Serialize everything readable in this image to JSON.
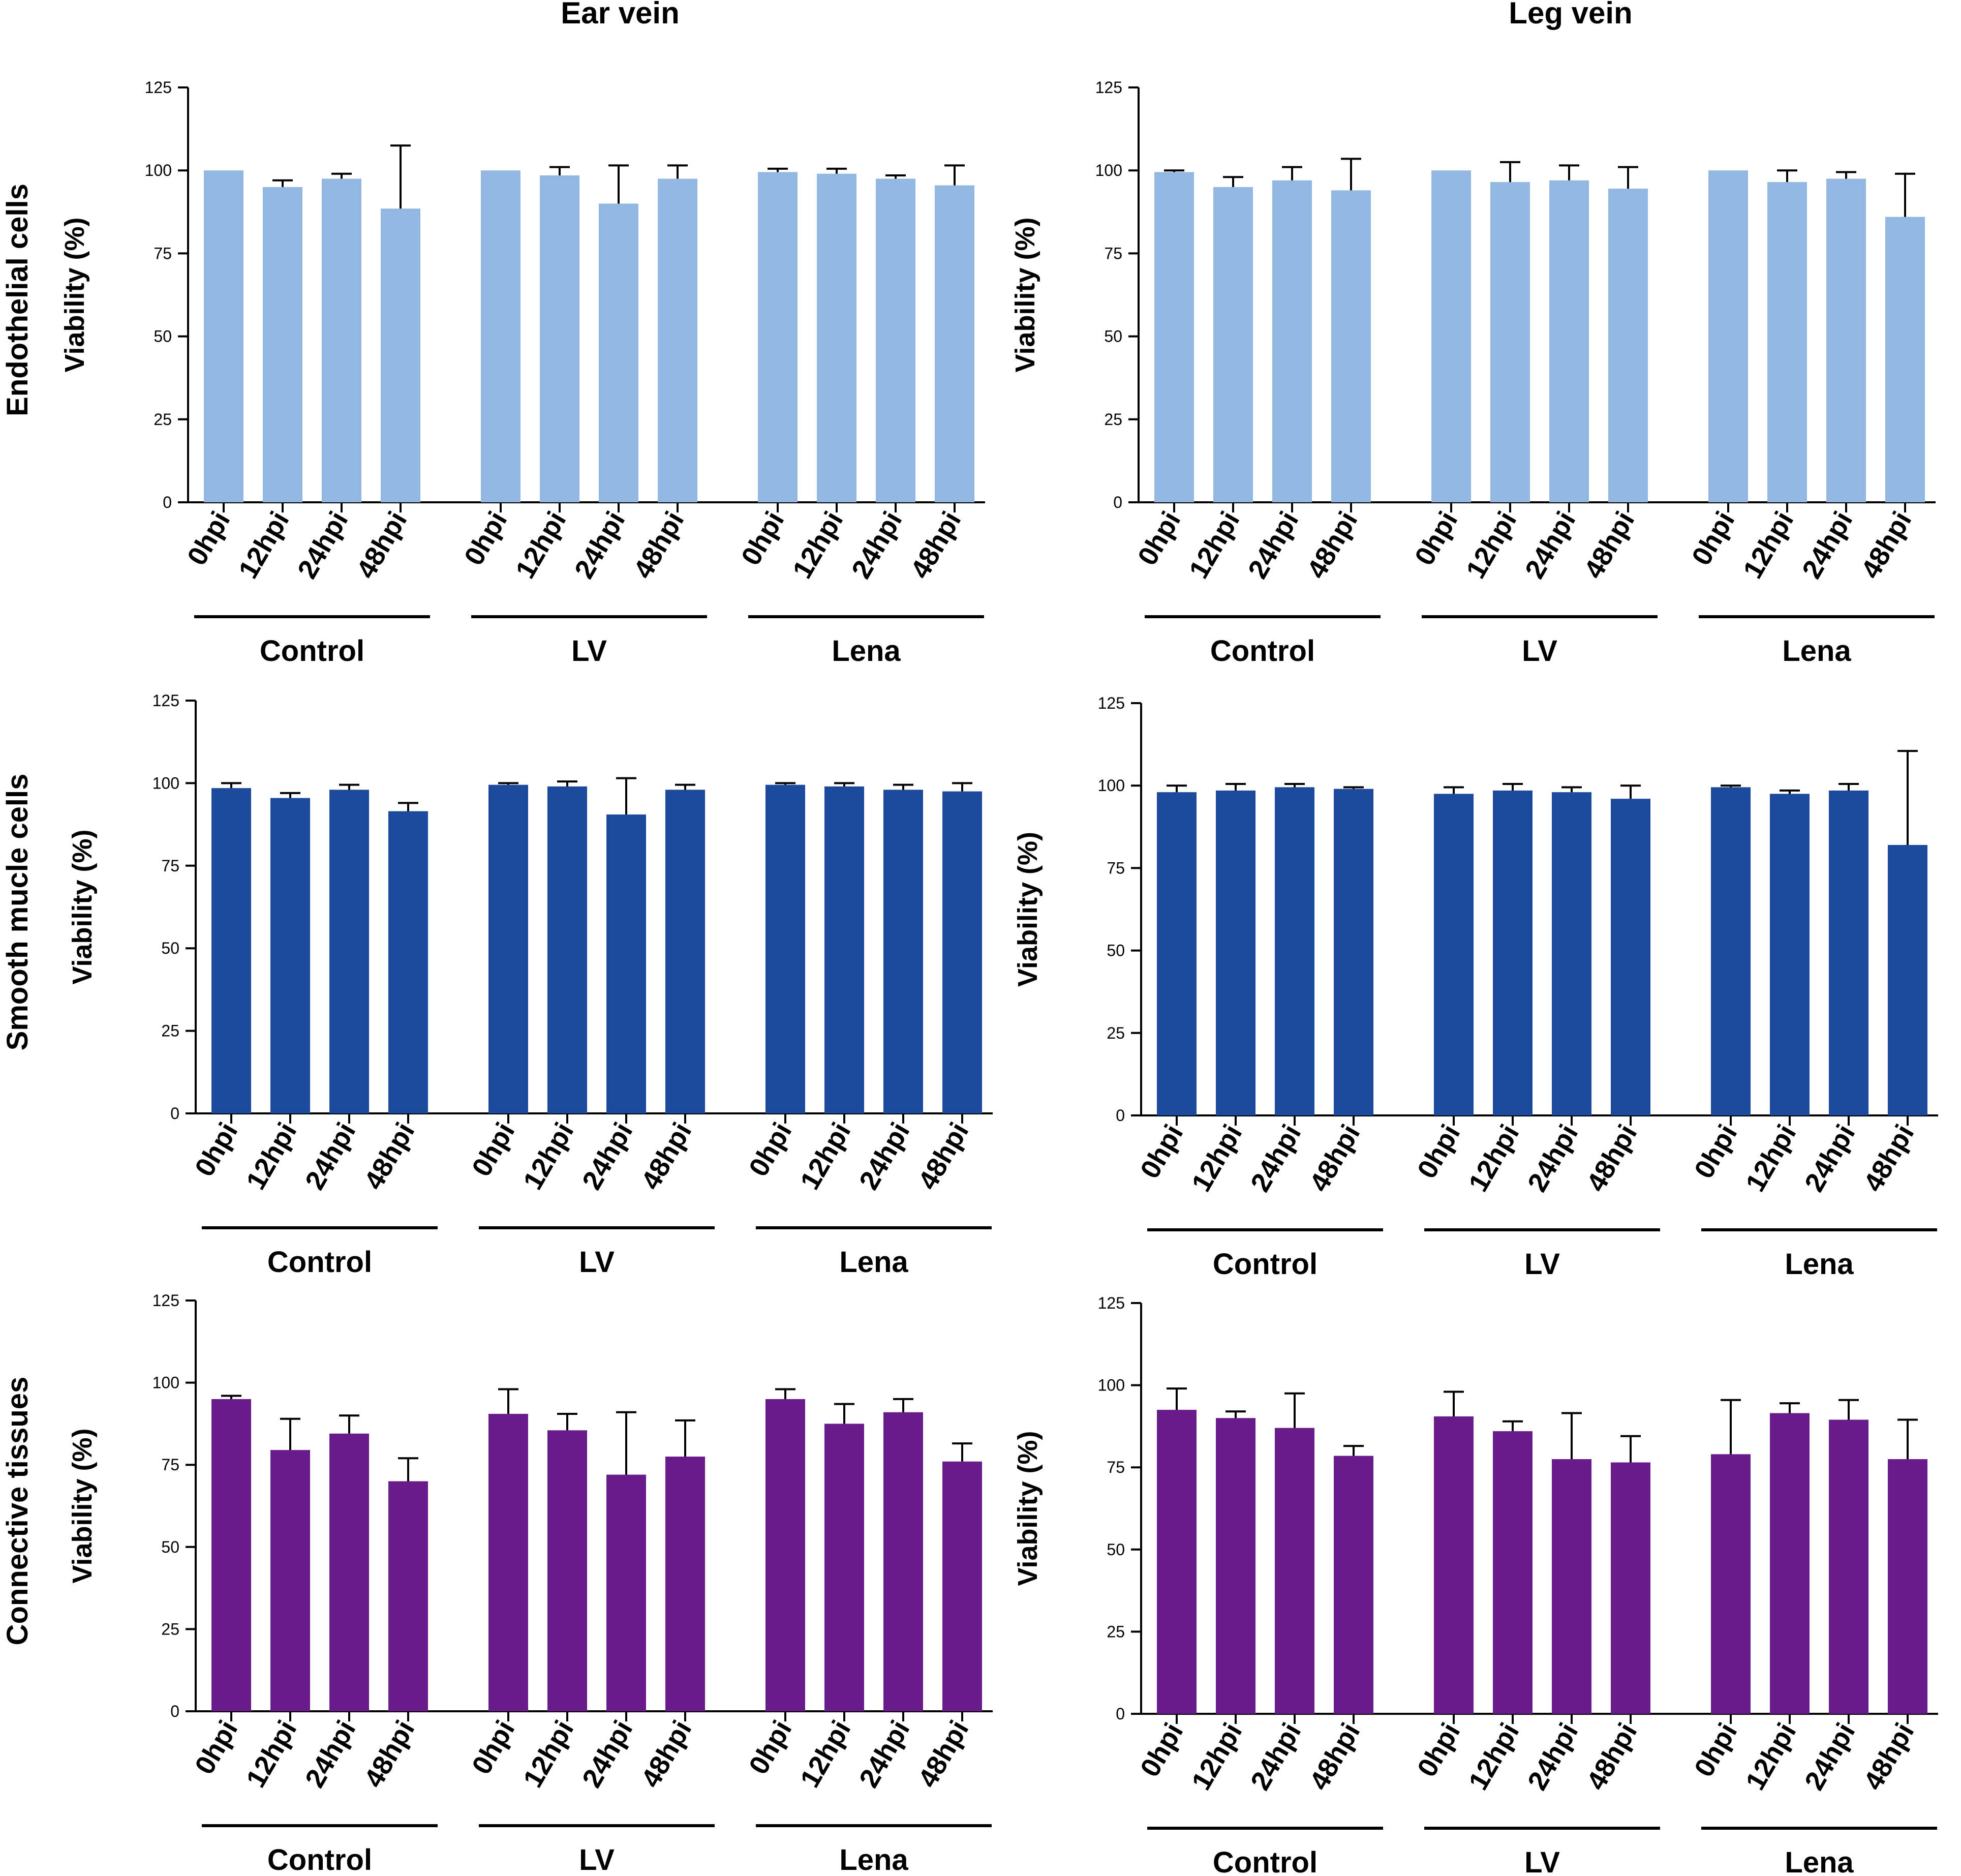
{
  "chart_data": [
    {
      "type": "bar",
      "column_title": "Ear vein",
      "row_title": "Endothelial cells",
      "color": "#92B7E0",
      "ylabel": "Viability (%)",
      "ylim": [
        0,
        125
      ],
      "yticks": [
        "0",
        "25",
        "50",
        "75",
        "100",
        "125"
      ],
      "categories": [
        "0hpi",
        "12hpi",
        "24hpi",
        "48hpi"
      ],
      "groups": [
        {
          "name": "Control",
          "values": [
            100,
            95,
            97.5,
            88.5
          ],
          "errors": [
            0,
            2,
            1.5,
            19
          ]
        },
        {
          "name": "LV",
          "values": [
            100,
            98.5,
            90,
            97.5
          ],
          "errors": [
            0,
            2.5,
            11.5,
            4
          ]
        },
        {
          "name": "Lena",
          "values": [
            99.5,
            99,
            97.5,
            95.5
          ],
          "errors": [
            1,
            1.5,
            1,
            6
          ]
        }
      ]
    },
    {
      "type": "bar",
      "column_title": "Leg vein",
      "row_title": "",
      "color": "#92B7E0",
      "ylabel": "Viability (%)",
      "ylim": [
        0,
        125
      ],
      "yticks": [
        "0",
        "25",
        "50",
        "75",
        "100",
        "125"
      ],
      "categories": [
        "0hpi",
        "12hpi",
        "24hpi",
        "48hpi"
      ],
      "groups": [
        {
          "name": "Control",
          "values": [
            99.5,
            95,
            97,
            94
          ],
          "errors": [
            0.5,
            3,
            4,
            9.5
          ]
        },
        {
          "name": "LV",
          "values": [
            100,
            96.5,
            97,
            94.5
          ],
          "errors": [
            0,
            6,
            4.5,
            6.5
          ]
        },
        {
          "name": "Lena",
          "values": [
            100,
            96.5,
            97.5,
            86
          ],
          "errors": [
            0,
            3.5,
            2,
            13
          ]
        }
      ]
    },
    {
      "type": "bar",
      "column_title": "",
      "row_title": "Smooth mucle cells",
      "color": "#1B4A9C",
      "ylabel": "Viability (%)",
      "ylim": [
        0,
        125
      ],
      "yticks": [
        "0",
        "25",
        "50",
        "75",
        "100",
        "125"
      ],
      "categories": [
        "0hpi",
        "12hpi",
        "24hpi",
        "48hpi"
      ],
      "groups": [
        {
          "name": "Control",
          "values": [
            98.5,
            95.5,
            98,
            91.5
          ],
          "errors": [
            1.5,
            1.5,
            1.5,
            2.5
          ]
        },
        {
          "name": "LV",
          "values": [
            99.5,
            99,
            90.5,
            98
          ],
          "errors": [
            0.5,
            1.5,
            11,
            1.5
          ]
        },
        {
          "name": "Lena",
          "values": [
            99.5,
            99,
            98,
            97.5
          ],
          "errors": [
            0.5,
            1,
            1.5,
            2.5
          ]
        }
      ]
    },
    {
      "type": "bar",
      "column_title": "",
      "row_title": "",
      "color": "#1B4A9C",
      "ylabel": "Viability (%)",
      "ylim": [
        0,
        125
      ],
      "yticks": [
        "0",
        "25",
        "50",
        "75",
        "100",
        "125"
      ],
      "categories": [
        "0hpi",
        "12hpi",
        "24hpi",
        "48hpi"
      ],
      "groups": [
        {
          "name": "Control",
          "values": [
            98,
            98.5,
            99.5,
            99
          ],
          "errors": [
            2,
            2,
            1,
            0.5
          ]
        },
        {
          "name": "LV",
          "values": [
            97.5,
            98.5,
            98,
            96
          ],
          "errors": [
            2,
            2,
            1.5,
            4
          ]
        },
        {
          "name": "Lena",
          "values": [
            99.5,
            97.5,
            98.5,
            82
          ],
          "errors": [
            0.5,
            1,
            2,
            28.5
          ]
        }
      ]
    },
    {
      "type": "bar",
      "column_title": "",
      "row_title": "Connective tissues",
      "color": "#6A1B8A",
      "ylabel": "Viability (%)",
      "ylim": [
        0,
        125
      ],
      "yticks": [
        "0",
        "25",
        "50",
        "75",
        "100",
        "125"
      ],
      "categories": [
        "0hpi",
        "12hpi",
        "24hpi",
        "48hpi"
      ],
      "groups": [
        {
          "name": "Control",
          "values": [
            95,
            79.5,
            84.5,
            70
          ],
          "errors": [
            1,
            9.5,
            5.5,
            7
          ]
        },
        {
          "name": "LV",
          "values": [
            90.5,
            85.5,
            72,
            77.5
          ],
          "errors": [
            7.5,
            5,
            19,
            11
          ]
        },
        {
          "name": "Lena",
          "values": [
            95,
            87.5,
            91,
            76
          ],
          "errors": [
            3,
            6,
            4,
            5.5
          ]
        }
      ]
    },
    {
      "type": "bar",
      "column_title": "",
      "row_title": "",
      "color": "#6A1B8A",
      "ylabel": "Viability (%)",
      "ylim": [
        0,
        125
      ],
      "yticks": [
        "0",
        "25",
        "50",
        "75",
        "100",
        "125"
      ],
      "categories": [
        "0hpi",
        "12hpi",
        "24hpi",
        "48hpi"
      ],
      "groups": [
        {
          "name": "Control",
          "values": [
            92.5,
            90,
            87,
            78.5
          ],
          "errors": [
            6.5,
            2,
            10.5,
            3
          ]
        },
        {
          "name": "LV",
          "values": [
            90.5,
            86,
            77.5,
            76.5
          ],
          "errors": [
            7.5,
            3,
            14,
            8
          ]
        },
        {
          "name": "Lena",
          "values": [
            79,
            91.5,
            89.5,
            77.5
          ],
          "errors": [
            16.5,
            3,
            6,
            12
          ]
        }
      ]
    }
  ]
}
